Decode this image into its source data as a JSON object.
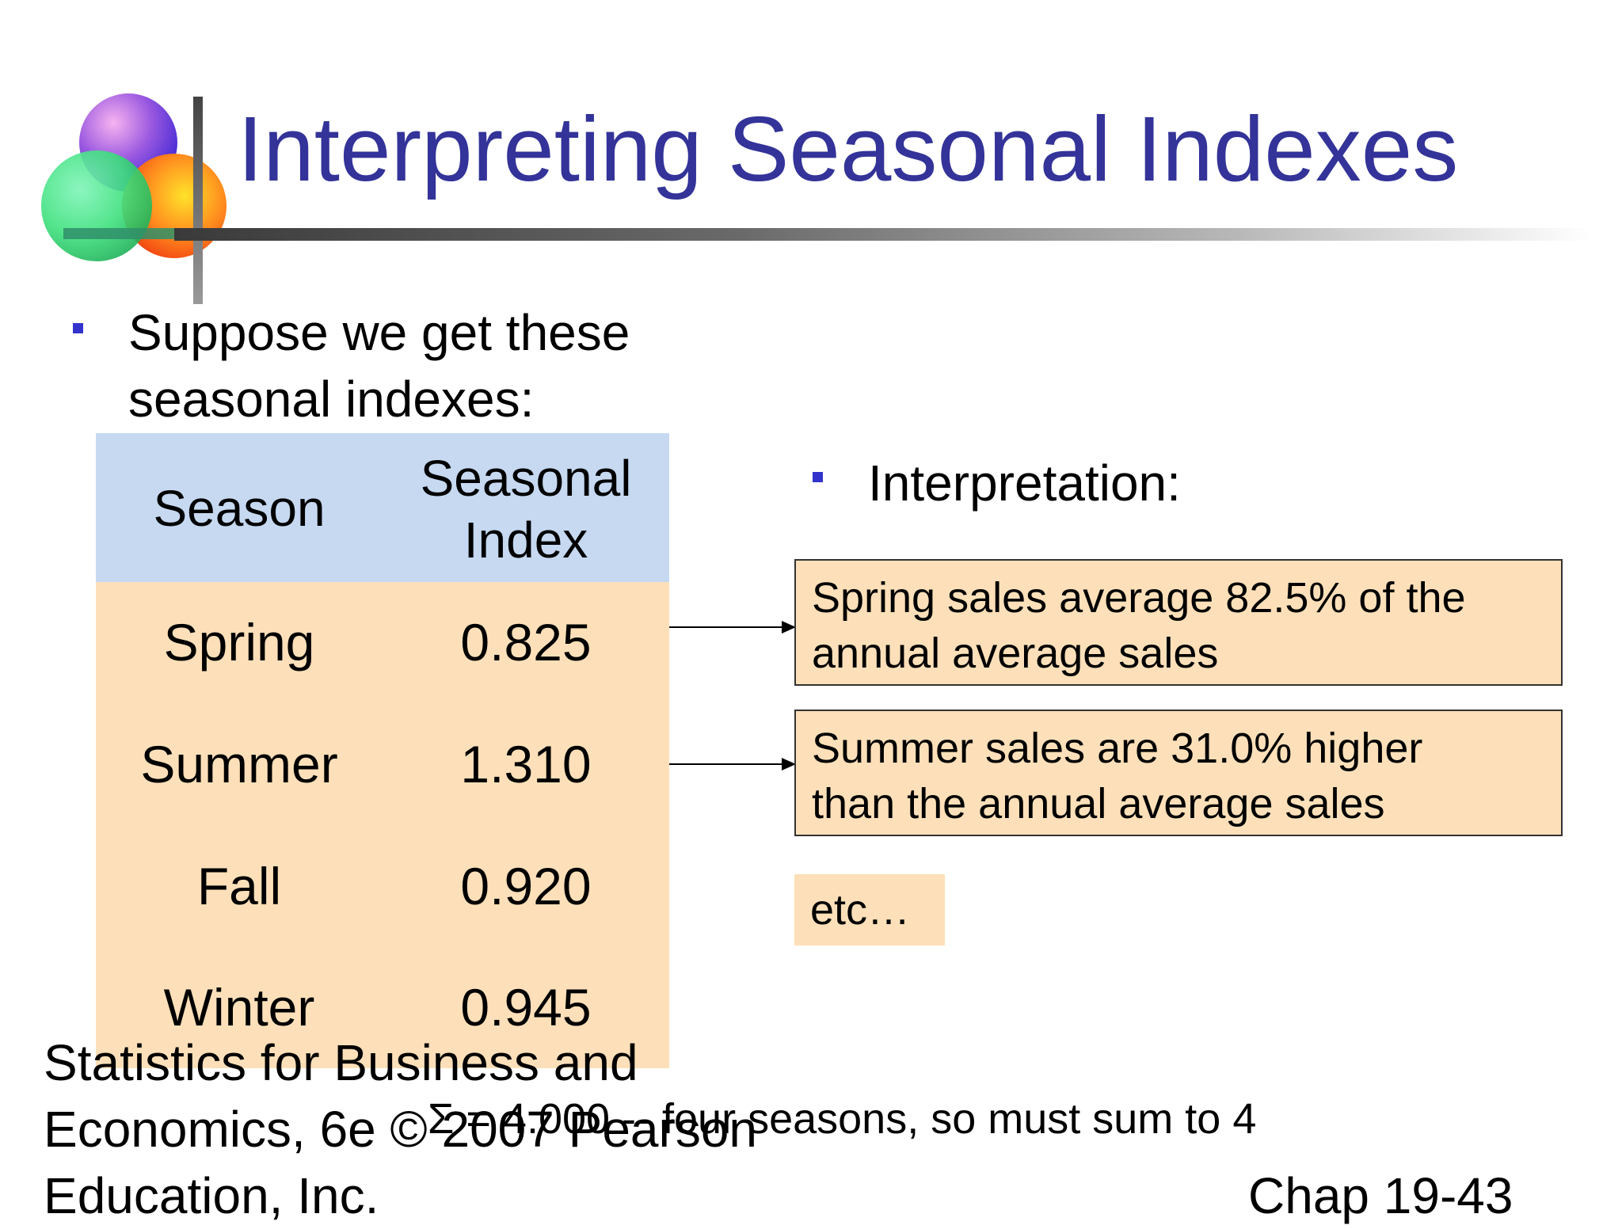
{
  "slide": {
    "title": "Interpreting Seasonal Indexes",
    "bullet1_line1": "Suppose we get these",
    "bullet1_line2": "seasonal indexes:",
    "bullet2": "Interpretation:",
    "table": {
      "headers": [
        "Season",
        "Seasonal",
        "Index"
      ],
      "rows": [
        {
          "season": "Spring",
          "index": "0.825"
        },
        {
          "season": "Summer",
          "index": "1.310"
        },
        {
          "season": "Fall",
          "index": "0.920"
        },
        {
          "season": "Winter",
          "index": "0.945"
        }
      ]
    },
    "interpretations": [
      {
        "line1": "Spring sales average 82.5% of the",
        "line2": "annual average sales"
      },
      {
        "line1": "Summer sales are 31.0% higher",
        "line2": "than the annual average sales"
      }
    ],
    "etc": "etc…",
    "sum_note": "Σ = 4.000 -- four seasons, so must sum to 4",
    "footer_line1": "Statistics for Business and",
    "footer_line2": "Economics, 6e © 2007 Pearson",
    "footer_line3": "Education, Inc.",
    "chap": "Chap 19-43"
  }
}
